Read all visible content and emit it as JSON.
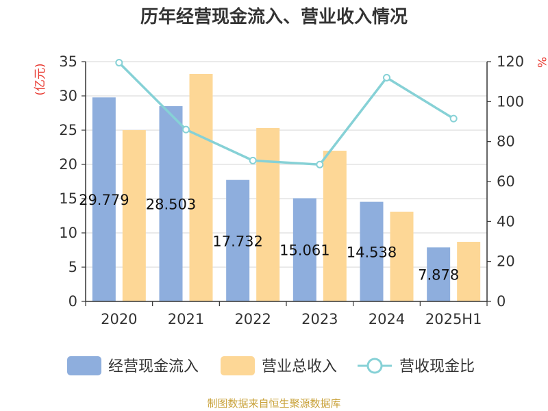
{
  "chart_data": {
    "type": "bar",
    "title": "历年经营现金流入、营业收入情况",
    "categories": [
      "2020",
      "2021",
      "2022",
      "2023",
      "2024",
      "2025H1"
    ],
    "series": [
      {
        "name": "经营现金流入",
        "type": "bar",
        "axis": "left",
        "color": "#8eaedd",
        "values": [
          29.779,
          28.503,
          17.732,
          15.061,
          14.538,
          7.878
        ],
        "labels": [
          "29.779",
          "28.503",
          "17.732",
          "15.061",
          "14.538",
          "7.878"
        ]
      },
      {
        "name": "营业总收入",
        "type": "bar",
        "axis": "right_none",
        "color": "#fdd796",
        "values": [
          25.0,
          33.2,
          25.3,
          22.0,
          13.1,
          8.7
        ]
      },
      {
        "name": "营收现金比",
        "type": "line",
        "axis": "right",
        "color": "#86d1d6",
        "values": [
          119.5,
          86.0,
          70.5,
          68.5,
          112.0,
          91.5
        ]
      }
    ],
    "left_axis": {
      "unit": "(亿元)",
      "min": 0,
      "max": 35,
      "ticks": [
        "0",
        "5",
        "10",
        "15",
        "20",
        "25",
        "30",
        "35"
      ]
    },
    "right_axis": {
      "unit": "%",
      "min": 0,
      "max": 120,
      "ticks": [
        "0",
        "20",
        "40",
        "60",
        "80",
        "100",
        "120"
      ]
    },
    "grid": true,
    "legend_position": "bottom"
  },
  "source": "制图数据来自恒生聚源数据库"
}
